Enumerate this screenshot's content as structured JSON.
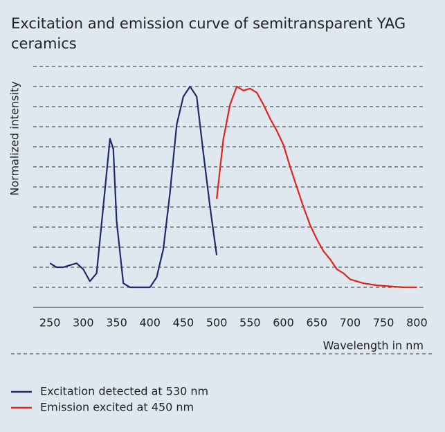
{
  "chart_data": {
    "type": "line",
    "title": "Excitation and emission curve of semitransparent YAG ceramics",
    "y_label": "Normalized intensity",
    "x_label": "Wavelength in nm",
    "xlim": [
      225,
      810
    ],
    "xticks": [
      250,
      300,
      350,
      400,
      450,
      500,
      550,
      600,
      650,
      700,
      750,
      800
    ],
    "ylim": [
      -0.1,
      1.1
    ],
    "yticks": [
      0,
      0.1,
      0.2,
      0.3,
      0.4,
      0.5,
      0.6,
      0.7,
      0.8,
      0.9,
      1.0,
      1.1
    ],
    "grid": true,
    "legend": "bottom",
    "series": [
      {
        "name": "Excitation detected at 530 nm",
        "color": "#1f2a6b",
        "x": [
          250,
          255,
          260,
          270,
          280,
          290,
          300,
          310,
          320,
          330,
          340,
          345,
          350,
          360,
          370,
          400,
          410,
          420,
          430,
          440,
          450,
          460,
          470,
          480,
          490,
          500
        ],
        "values": [
          0.12,
          0.11,
          0.1,
          0.1,
          0.11,
          0.12,
          0.09,
          0.03,
          0.07,
          0.4,
          0.74,
          0.69,
          0.33,
          0.02,
          0,
          0,
          0.05,
          0.19,
          0.47,
          0.81,
          0.95,
          1.0,
          0.95,
          0.67,
          0.4,
          0.16
        ]
      },
      {
        "name": "Emission excited at 450 nm",
        "color": "#e2231a",
        "x": [
          500,
          510,
          520,
          530,
          540,
          550,
          560,
          570,
          580,
          590,
          600,
          610,
          620,
          630,
          640,
          650,
          660,
          670,
          680,
          690,
          700,
          720,
          740,
          760,
          780,
          800
        ],
        "values": [
          0.44,
          0.74,
          0.91,
          1.0,
          0.98,
          0.99,
          0.97,
          0.91,
          0.84,
          0.78,
          0.71,
          0.6,
          0.5,
          0.4,
          0.31,
          0.24,
          0.18,
          0.14,
          0.09,
          0.07,
          0.04,
          0.02,
          0.01,
          0.005,
          0,
          0
        ]
      }
    ]
  }
}
